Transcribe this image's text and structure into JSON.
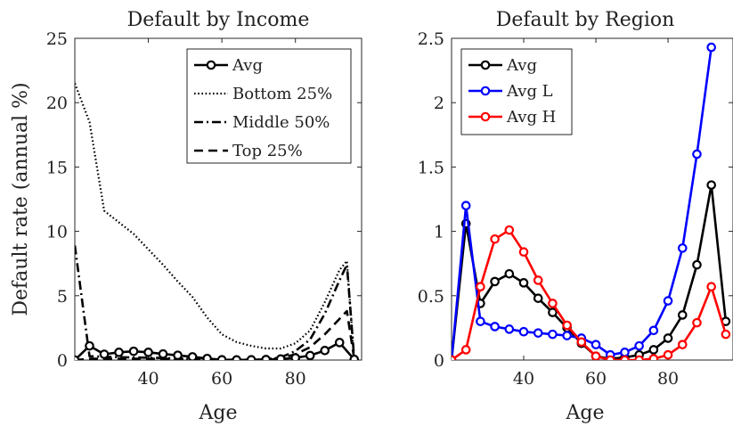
{
  "chart_data": [
    {
      "type": "line",
      "title": "Default by Income",
      "xlabel": "Age",
      "ylabel": "Default rate (annual %)",
      "xlim": [
        20,
        98
      ],
      "ylim": [
        0,
        25
      ],
      "xticks": [
        40,
        60,
        80
      ],
      "yticks": [
        0,
        5,
        10,
        15,
        20,
        25
      ],
      "legend_position": "top-right",
      "series": [
        {
          "name": "Avg",
          "style": "solid-marker",
          "x": [
            20,
            24,
            28,
            32,
            36,
            40,
            44,
            48,
            52,
            56,
            60,
            64,
            68,
            72,
            76,
            80,
            84,
            88,
            92,
            96
          ],
          "y": [
            0,
            1.1,
            0.45,
            0.6,
            0.68,
            0.6,
            0.47,
            0.37,
            0.25,
            0.12,
            0.02,
            0.01,
            0.02,
            0.04,
            0.08,
            0.17,
            0.35,
            0.74,
            1.36,
            0.05
          ]
        },
        {
          "name": "Bottom 25%",
          "style": "dotted",
          "x": [
            20,
            24,
            28,
            32,
            36,
            40,
            44,
            48,
            52,
            56,
            60,
            64,
            68,
            72,
            76,
            80,
            84,
            88,
            92,
            94,
            96
          ],
          "y": [
            21.5,
            18.5,
            11.6,
            10.7,
            9.8,
            8.6,
            7.4,
            6.1,
            4.9,
            3.3,
            2.0,
            1.4,
            1.1,
            0.9,
            0.9,
            1.3,
            2.3,
            4.5,
            7.0,
            7.7,
            0.1
          ]
        },
        {
          "name": "Middle 50%",
          "style": "dashdot",
          "x": [
            20,
            24,
            28,
            32,
            36,
            40,
            44,
            48,
            52,
            56,
            60,
            64,
            68,
            72,
            76,
            80,
            84,
            88,
            92,
            94,
            96
          ],
          "y": [
            8.9,
            0.3,
            0.25,
            0.22,
            0.2,
            0.18,
            0.15,
            0.12,
            0.08,
            0.05,
            0.03,
            0.02,
            0.03,
            0.05,
            0.2,
            0.7,
            1.6,
            3.6,
            6.2,
            7.4,
            0.1
          ]
        },
        {
          "name": "Top 25%",
          "style": "dashed",
          "x": [
            20,
            24,
            28,
            32,
            36,
            40,
            44,
            48,
            52,
            56,
            60,
            64,
            68,
            72,
            76,
            80,
            84,
            88,
            92,
            94,
            96
          ],
          "y": [
            0,
            0.1,
            0.1,
            0.1,
            0.1,
            0.1,
            0.1,
            0.1,
            0.05,
            0.03,
            0.02,
            0.02,
            0.02,
            0.05,
            0.15,
            0.45,
            1.0,
            2.0,
            3.2,
            3.8,
            0.1
          ]
        }
      ]
    },
    {
      "type": "line",
      "title": "Default by Region",
      "xlabel": "Age",
      "ylabel": "",
      "xlim": [
        20,
        98
      ],
      "ylim": [
        0,
        2.5
      ],
      "xticks": [
        40,
        60,
        80
      ],
      "yticks": [
        0,
        0.5,
        1,
        1.5,
        2,
        2.5
      ],
      "legend_position": "top-left",
      "series": [
        {
          "name": "Avg",
          "color": "#000000",
          "x": [
            20,
            24,
            28,
            32,
            36,
            40,
            44,
            48,
            52,
            56,
            60,
            64,
            68,
            72,
            76,
            80,
            84,
            88,
            92,
            96
          ],
          "y": [
            0,
            1.06,
            0.44,
            0.61,
            0.67,
            0.6,
            0.48,
            0.37,
            0.25,
            0.13,
            0.03,
            0.01,
            0.02,
            0.04,
            0.08,
            0.17,
            0.35,
            0.74,
            1.36,
            0.3
          ]
        },
        {
          "name": "Avg L",
          "color": "#0000ff",
          "x": [
            20,
            24,
            28,
            32,
            36,
            40,
            44,
            48,
            52,
            56,
            60,
            64,
            68,
            72,
            76,
            80,
            84,
            88,
            92
          ],
          "y": [
            0,
            1.2,
            0.3,
            0.26,
            0.24,
            0.22,
            0.21,
            0.2,
            0.19,
            0.17,
            0.12,
            0.04,
            0.06,
            0.11,
            0.23,
            0.46,
            0.87,
            1.6,
            2.43
          ]
        },
        {
          "name": "Avg H",
          "color": "#ff0000",
          "x": [
            20,
            24,
            28,
            32,
            36,
            40,
            44,
            48,
            52,
            56,
            60,
            64,
            68,
            72,
            76,
            80,
            84,
            88,
            92,
            96
          ],
          "y": [
            0,
            0.08,
            0.57,
            0.94,
            1.01,
            0.84,
            0.62,
            0.44,
            0.27,
            0.14,
            0.03,
            0,
            0,
            0,
            0.01,
            0.04,
            0.12,
            0.29,
            0.57,
            0.2
          ]
        }
      ]
    }
  ]
}
